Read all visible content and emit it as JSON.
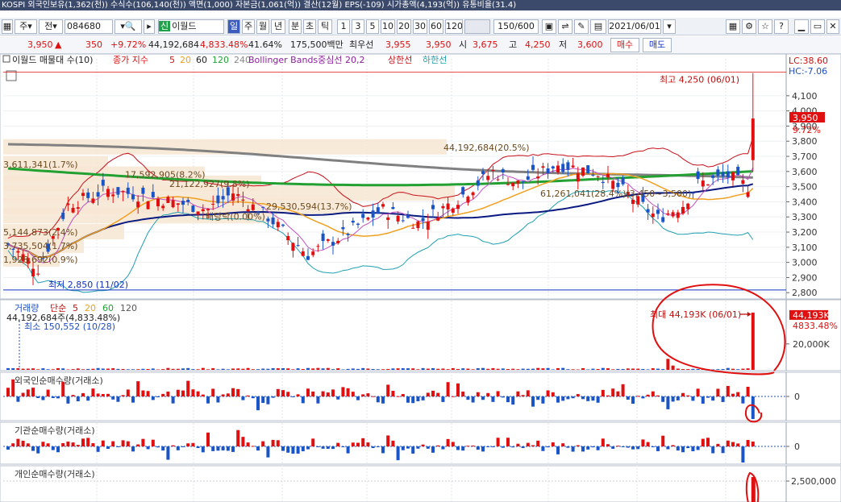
{
  "top_bar": "KOSPI 외국인보유(1,362(천)) 수식수(106,140(천)) 액면(1,000) 자본금(1,061(억)) 결산(12월) EPS(-109) 시가총액(4,193(억)) 유통비율(31.4)",
  "toolbar": {
    "menu_label": "주",
    "prev_label": "전",
    "stock_code": "084680",
    "stock_name": "이월드",
    "stock_badge": "신",
    "periods": [
      "일",
      "주",
      "월",
      "년",
      "분",
      "초",
      "틱"
    ],
    "minutes": [
      "1",
      "3",
      "5",
      "10",
      "20",
      "30",
      "60",
      "120"
    ],
    "count_value": "150",
    "count_total": "/600",
    "date_value": "2021/06/01"
  },
  "quote": {
    "price": "3,950",
    "arrow": "▲",
    "change": "350",
    "change_pct": "+9.72%",
    "volume": "44,192,684",
    "volume_pct": "4,833.48%",
    "turnover": "41.64%",
    "amount": "175,500백만",
    "ask_label": "최우선",
    "ask": "3,955",
    "bid": "3,950",
    "open_label": "시",
    "open": "3,675",
    "high_label": "고",
    "high": "4,250",
    "low_label": "저",
    "low": "3,600",
    "buy_label": "매수",
    "sell_label": "매도"
  },
  "chart_data": [
    {
      "type": "candlestick",
      "legend": {
        "title": "이월드 매물대 수(10)",
        "ma_prefix": "종가 지수",
        "ma_periods": [
          "5",
          "20",
          "60",
          "120",
          "240"
        ],
        "bb_label": "Bollinger Bands중심선 20,2",
        "bb_upper": "상한선",
        "bb_lower": "하한선"
      },
      "y_ticks": [
        4100,
        4000,
        3900,
        3800,
        3700,
        3600,
        3500,
        3400,
        3300,
        3200,
        3100,
        3000,
        2900,
        2800
      ],
      "y_tick_labels": [
        "4,100",
        "4,000",
        "3,900",
        "3,800",
        "3,700",
        "3,600",
        "3,500",
        "3,400",
        "3,300",
        "3,200",
        "3,100",
        "3,000",
        "2,900",
        "2,800"
      ],
      "ylim": [
        2780,
        4280
      ],
      "last_price": "3,950",
      "last_pct": "9.72%",
      "lc_label": "LC:38.60",
      "hc_label": "HC:-7.06",
      "max_label": "최고 4,250 (06/01)",
      "min_label": "최저 2,850 (11/02)",
      "volume_profile": [
        {
          "price": 3648,
          "label": "3,611,341(1.7%)"
        },
        {
          "price": 3580,
          "label": "17,592,905(8.2%)"
        },
        {
          "price": 3520,
          "label": "21,122,927(9.8%)"
        },
        {
          "price": 3760,
          "label": "44,192,684(20.5%)"
        },
        {
          "price": 3455,
          "label": "61,261,041(28.4%)(3,450~3,500)"
        },
        {
          "price": 3370,
          "label": "29,530,594(13.7%)"
        },
        {
          "price": 3305,
          "label": "배당락(0.00%)"
        },
        {
          "price": 3200,
          "label": "5,144,873(2.4%)"
        },
        {
          "price": 3110,
          "label": "3,735,504(1.7%)"
        },
        {
          "price": 3020,
          "label": "1,928,692(0.9%)"
        }
      ]
    },
    {
      "type": "bar",
      "legend": {
        "title": "거래량",
        "ma_prefix": "단순",
        "ma_periods": [
          "5",
          "20",
          "60",
          "120"
        ]
      },
      "info_label": "44,192,684주(4,833.48%)",
      "min_label": "최소 150,552 (10/28)",
      "max_label": "최대 44,193K (06/01)",
      "tick_label": "20,000K",
      "last_value": "44,193K",
      "last_pct": "4833.48%",
      "values": [
        150552,
        900000,
        44192684
      ]
    },
    {
      "type": "bar",
      "legend": {
        "title": "외국인순매수량(거래소)"
      },
      "tick_label": "0"
    },
    {
      "type": "bar",
      "legend": {
        "title": "기관순매수량(거래소)"
      },
      "tick_label": "0"
    },
    {
      "type": "bar",
      "legend": {
        "title": "개인순매수량(거래소)"
      },
      "tick_label": "2,500,000"
    }
  ],
  "colors": {
    "up": "#e01010",
    "down": "#1a55c8",
    "ma240": "#808080",
    "ma120": "#22a032",
    "ma60": "#0a1a80",
    "ma20": "#f0a020",
    "bb": "#c8101a",
    "bb_lower": "#20a0b0",
    "annotation": "#e01010"
  }
}
